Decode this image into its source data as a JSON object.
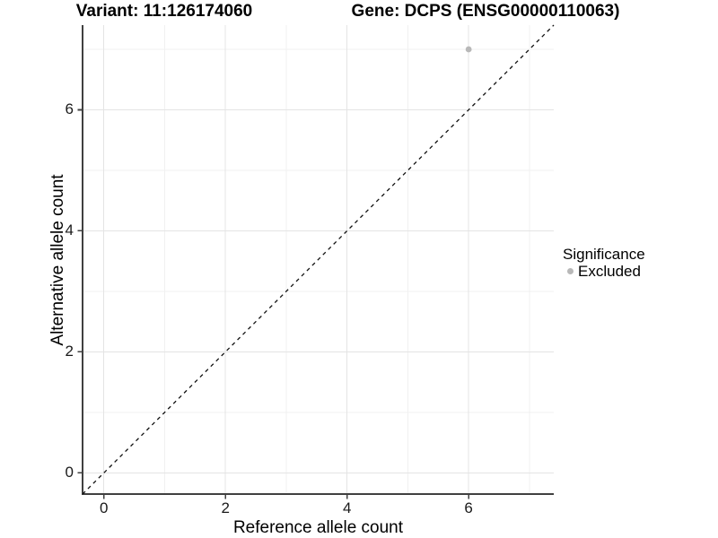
{
  "chart_data": {
    "type": "scatter",
    "titles": {
      "variant": "Variant: 11:126174060",
      "gene": "Gene: DCPS (ENSG00000110063)"
    },
    "xlabel": "Reference allele count",
    "ylabel": "Alternative allele count",
    "xlim": [
      -0.35,
      7.4
    ],
    "ylim": [
      -0.35,
      7.4
    ],
    "x_ticks": [
      0,
      2,
      4,
      6
    ],
    "y_ticks": [
      0,
      2,
      4,
      6
    ],
    "x_minor_gridlines": [
      1,
      3,
      5,
      7
    ],
    "y_minor_gridlines": [
      1,
      3,
      5,
      7
    ],
    "grid": true,
    "reference_line": {
      "equation": "y = x",
      "style": "dashed",
      "color": "#111111"
    },
    "series": [
      {
        "name": "Excluded",
        "color": "#b8b8b8",
        "point_radius": 3.4,
        "points": [
          {
            "x": 6,
            "y": 7
          }
        ]
      }
    ],
    "legend": {
      "title": "Significance",
      "position": "right",
      "entries": [
        {
          "label": "Excluded",
          "color": "#b8b8b8"
        }
      ]
    }
  },
  "colors": {
    "background": "#ffffff",
    "axis_line": "#404040",
    "tick_label": "#1a1a1a",
    "grid_major": "#e4e4e4",
    "grid_minor": "#f1f1f1",
    "point": "#b8b8b8"
  }
}
